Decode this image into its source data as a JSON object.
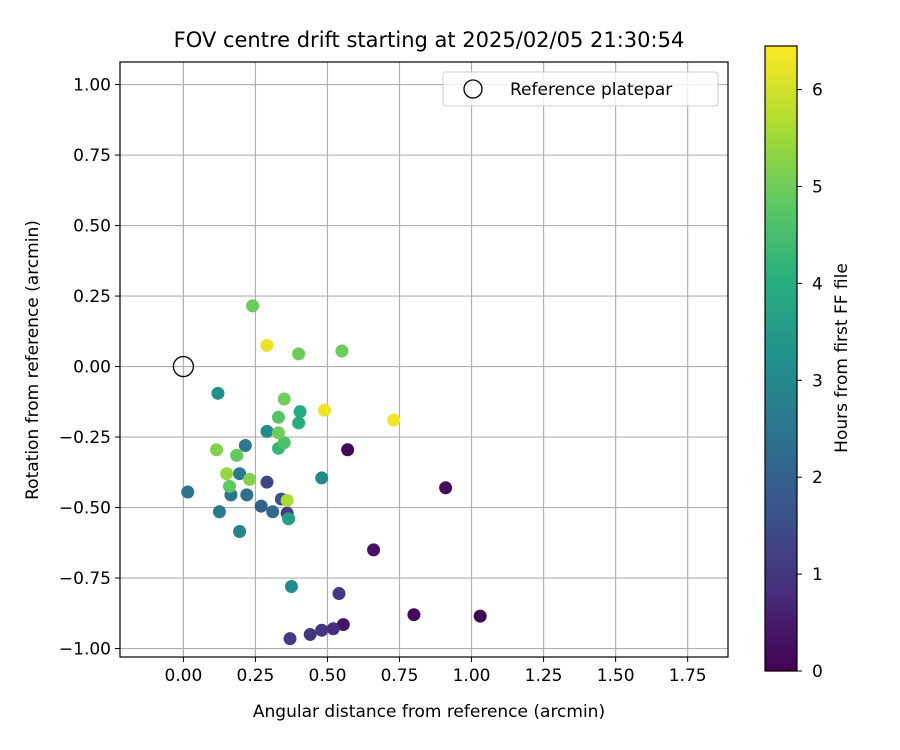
{
  "chart_data": {
    "type": "scatter",
    "title": "FOV centre drift starting at 2025/02/05 21:30:54",
    "xlabel": "Angular distance from reference (arcmin)",
    "ylabel": "Rotation from reference (arcmin)",
    "xlim": [
      -0.22,
      1.89
    ],
    "ylim": [
      -1.03,
      1.08
    ],
    "xticks": [
      "0.00",
      "0.25",
      "0.50",
      "0.75",
      "1.00",
      "1.25",
      "1.50",
      "1.75"
    ],
    "yticks": [
      "-1.00",
      "-0.75",
      "-0.50",
      "-0.25",
      "0.00",
      "0.25",
      "0.50",
      "0.75",
      "1.00"
    ],
    "grid": true,
    "legend_position": "top-right",
    "colorbar": {
      "label": "Hours from first FF file",
      "range": [
        0,
        6.45
      ],
      "ticks": [
        "0",
        "1",
        "2",
        "3",
        "4",
        "5",
        "6"
      ],
      "colormap": "viridis"
    },
    "reference_series": {
      "name": "Reference platepar",
      "x": 0.0,
      "y": 0.0
    },
    "points": [
      {
        "x": 1.03,
        "y": -0.885,
        "hours": 0.05
      },
      {
        "x": 0.8,
        "y": -0.88,
        "hours": 0.15
      },
      {
        "x": 0.91,
        "y": -0.43,
        "hours": 0.2
      },
      {
        "x": 0.66,
        "y": -0.65,
        "hours": 0.3
      },
      {
        "x": 0.57,
        "y": -0.295,
        "hours": 0.1
      },
      {
        "x": 0.555,
        "y": -0.915,
        "hours": 0.35
      },
      {
        "x": 0.52,
        "y": -0.93,
        "hours": 0.8
      },
      {
        "x": 0.54,
        "y": -0.805,
        "hours": 1.0
      },
      {
        "x": 0.48,
        "y": -0.935,
        "hours": 1.0
      },
      {
        "x": 0.44,
        "y": -0.95,
        "hours": 1.05
      },
      {
        "x": 0.37,
        "y": -0.965,
        "hours": 1.1
      },
      {
        "x": 0.36,
        "y": -0.52,
        "hours": 1.1
      },
      {
        "x": 0.29,
        "y": -0.41,
        "hours": 1.3
      },
      {
        "x": 0.34,
        "y": -0.47,
        "hours": 1.6
      },
      {
        "x": 0.27,
        "y": -0.495,
        "hours": 2.0
      },
      {
        "x": 0.31,
        "y": -0.515,
        "hours": 2.2
      },
      {
        "x": 0.22,
        "y": -0.455,
        "hours": 2.4
      },
      {
        "x": 0.165,
        "y": -0.455,
        "hours": 2.5
      },
      {
        "x": 0.015,
        "y": -0.445,
        "hours": 2.45
      },
      {
        "x": 0.125,
        "y": -0.515,
        "hours": 2.6
      },
      {
        "x": 0.215,
        "y": -0.28,
        "hours": 2.6
      },
      {
        "x": 0.195,
        "y": -0.38,
        "hours": 2.55
      },
      {
        "x": 0.195,
        "y": -0.585,
        "hours": 2.9
      },
      {
        "x": 0.48,
        "y": -0.395,
        "hours": 3.0
      },
      {
        "x": 0.29,
        "y": -0.23,
        "hours": 3.1
      },
      {
        "x": 0.12,
        "y": -0.095,
        "hours": 3.2
      },
      {
        "x": 0.375,
        "y": -0.78,
        "hours": 3.1
      },
      {
        "x": 0.365,
        "y": -0.54,
        "hours": 3.6
      },
      {
        "x": 0.405,
        "y": -0.16,
        "hours": 3.9
      },
      {
        "x": 0.4,
        "y": -0.2,
        "hours": 4.0
      },
      {
        "x": 0.33,
        "y": -0.29,
        "hours": 4.3
      },
      {
        "x": 0.35,
        "y": -0.27,
        "hours": 4.6
      },
      {
        "x": 0.33,
        "y": -0.18,
        "hours": 4.7
      },
      {
        "x": 0.33,
        "y": -0.235,
        "hours": 5.0
      },
      {
        "x": 0.35,
        "y": -0.115,
        "hours": 5.0
      },
      {
        "x": 0.4,
        "y": 0.045,
        "hours": 5.0
      },
      {
        "x": 0.55,
        "y": 0.055,
        "hours": 5.0
      },
      {
        "x": 0.24,
        "y": 0.215,
        "hours": 4.95
      },
      {
        "x": 0.185,
        "y": -0.315,
        "hours": 4.9
      },
      {
        "x": 0.16,
        "y": -0.425,
        "hours": 4.8
      },
      {
        "x": 0.23,
        "y": -0.4,
        "hours": 5.2
      },
      {
        "x": 0.115,
        "y": -0.295,
        "hours": 5.2
      },
      {
        "x": 0.15,
        "y": -0.38,
        "hours": 5.4
      },
      {
        "x": 0.36,
        "y": -0.475,
        "hours": 5.6
      },
      {
        "x": 0.29,
        "y": 0.075,
        "hours": 6.25
      },
      {
        "x": 0.49,
        "y": -0.155,
        "hours": 6.3
      },
      {
        "x": 0.73,
        "y": -0.19,
        "hours": 6.35
      }
    ]
  }
}
